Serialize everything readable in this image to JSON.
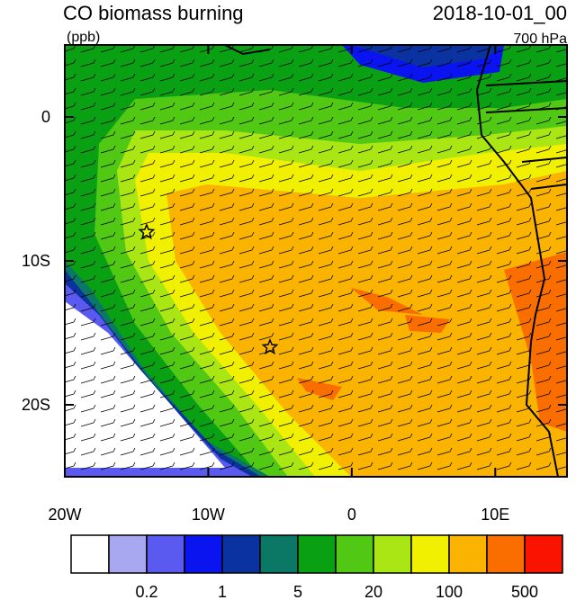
{
  "header": {
    "title": "CO biomass burning",
    "units": "(ppb)",
    "time": "2018-10-01_00",
    "level": "700 hPa"
  },
  "map": {
    "xlim": [
      -20,
      15
    ],
    "ylim": [
      -25,
      5
    ],
    "xticks": [
      {
        "value": -20,
        "label": "20W"
      },
      {
        "value": -10,
        "label": "10W"
      },
      0,
      {
        "value": 10,
        "label": "10E"
      }
    ],
    "yticks": [
      0,
      {
        "value": -10,
        "label": "10S"
      },
      {
        "value": -20,
        "label": "20S"
      }
    ],
    "markers": [
      {
        "lon": -14.3,
        "lat": -8
      },
      {
        "lon": -5.7,
        "lat": -16
      }
    ]
  },
  "colorbar": {
    "colors": [
      "#ffffff",
      "#a8a8f0",
      "#5a5af0",
      "#0a14f0",
      "#0a32a0",
      "#0a7864",
      "#0aa014",
      "#50c814",
      "#aae614",
      "#f0f000",
      "#fab400",
      "#fa6e00",
      "#fa1400"
    ],
    "levels": [
      0.2,
      1,
      5,
      20,
      100,
      500
    ]
  }
}
